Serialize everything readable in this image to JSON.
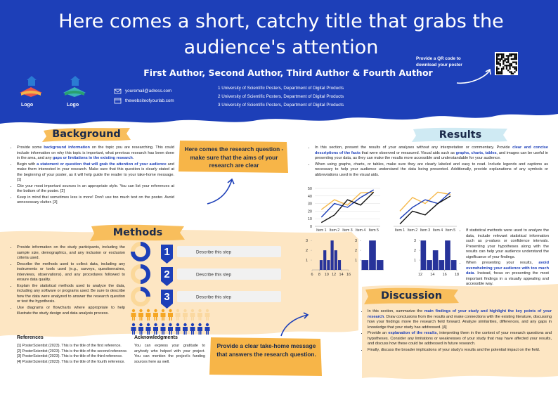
{
  "header": {
    "title": "Here comes a short, catchy title that grabs the audience's attention",
    "authors": "First Author, Second Author, Third Author & Fourth Author",
    "logos": [
      "Logo",
      "Logo"
    ],
    "email": "youremail@adress.com",
    "website": "thewebsiteofyourlab.com",
    "affiliations": [
      "1 University of Scientific Posters, Department of Digital Products",
      "2 University of Scientific Posters, Department of Digital Products",
      "3 University of Scientific Posters, Department of Digital Products"
    ],
    "qr_text": "Provide a QR code to download your poster"
  },
  "background": {
    "title": "Background",
    "bullets": [
      [
        "Provide some ",
        "background information",
        " on the topic you are researching. This could include information on why this topic is important, what previous research has been done in the area, and any ",
        "gaps or limitations in the existing research",
        "."
      ],
      [
        "Begin with ",
        "a statement or question that will grab the attention of your audience",
        " and make them interested in your research. Make sure that this question is clearly stated at the beginning of your poster, as it will help guide the reader to your take-home message. [1]"
      ],
      [
        "Cite your most important sources in an appropriate style. You can list your references at the bottom of the poster. [2]"
      ],
      [
        "Keep in mind that sometimes less is more! Don't use too much text on the poster. Avoid unnecessary clutter. [3]"
      ]
    ]
  },
  "question": "Here comes the research question - make sure that the aims of your research are clear",
  "methods": {
    "title": "Methods",
    "bullets": [
      [
        "Provide information on the study participants, including the sample size, demographics, and any inclusion or exclusion criteria used."
      ],
      [
        "Describe the methods used to collect data, including any instruments or tools used (e.g., surveys, questionnaires, interviews, observations), and any procedures followed to ensure data quality."
      ],
      [
        "Explain the statistical methods used to analyze the data, including any software or programs used. Be sure to describe how the data were analyzed to answer the research question or test the hypothesis."
      ],
      [
        "Use diagrams or flowcharts where appropriate to help illustrate the study design and data analysis process."
      ]
    ],
    "steps": [
      {
        "number": 1,
        "text": "Describe this step"
      },
      {
        "number": 2,
        "text": "Describe this step"
      },
      {
        "number": 3,
        "text": "Describe this step"
      }
    ]
  },
  "results": {
    "title": "Results",
    "bullets": [
      [
        "In this section, present the results of your analyses without any interpretation or commentary. Provide ",
        "clear and concise descriptions of the facts",
        " that were observed or measured. Visual aids such as ",
        "graphs, charts, tables",
        ", and images can be useful in presenting your data, as they can make the results more accessible and understandable for your audience."
      ],
      [
        "When using graphs, charts, or tables, make sure they are clearly labeled and easy to read. Include legends and captions as necessary to help your audience understand the data being presented. Additionally, provide explanations of any symbols or abbreviations used in the visual aids."
      ]
    ],
    "side_bullets": [
      [
        "If statistical methods were used to analyze the data, include relevant statistical information such as p-values or confidence intervals. Presenting your hypotheses along with the results can help your audience understand the significance of your findings."
      ],
      [
        "When presenting your results, ",
        "avoid overwhelming your audience with too much data",
        ". Instead, focus on presenting the most important findings in a visually appealing and accessible way."
      ]
    ],
    "line_charts": [
      {
        "type": "line",
        "categories": [
          "Item 1",
          "Item 2",
          "Item 3",
          "Item 4",
          "Item 5"
        ],
        "ylim": [
          0,
          50
        ],
        "yticks": [
          0,
          10,
          20,
          30,
          40,
          50
        ],
        "series": [
          {
            "color": "#f5b84a",
            "values": [
              22,
              35,
              28,
              44,
              45
            ]
          },
          {
            "color": "#1d3fb8",
            "values": [
              12,
              30,
              25,
              38,
              48
            ]
          },
          {
            "color": "#111111",
            "values": [
              5,
              15,
              35,
              28,
              45
            ]
          }
        ]
      },
      {
        "type": "line",
        "categories": [
          "Item 1",
          "Item 2",
          "Item 3",
          "Item 4",
          "Item 5"
        ],
        "ylim": [
          0,
          50
        ],
        "yticks": [],
        "series": [
          {
            "color": "#f5b84a",
            "values": [
              20,
              38,
              30,
              45,
              42
            ]
          },
          {
            "color": "#1d3fb8",
            "values": [
              10,
              25,
              35,
              30,
              45
            ]
          },
          {
            "color": "#111111",
            "values": [
              3,
              20,
              15,
              30,
              40
            ]
          }
        ]
      }
    ],
    "histograms": [
      {
        "type": "histogram",
        "bins": [
          8,
          9,
          10,
          11,
          12,
          13,
          14
        ],
        "counts": [
          1,
          2,
          1,
          3,
          2,
          1
        ],
        "xlim": [
          6,
          16
        ],
        "xticks": [
          6,
          8,
          10,
          12,
          14,
          16
        ],
        "ylim": [
          0,
          3.3
        ],
        "yticks": [
          1,
          2,
          3
        ],
        "color": "#27339a"
      },
      {
        "type": "histogram",
        "bins": [
          0,
          1,
          2,
          3
        ],
        "counts": [
          1,
          3,
          1
        ],
        "xlim": [
          0,
          3
        ],
        "xticks": [],
        "ylim": [
          0,
          3.3
        ],
        "yticks": [
          1,
          2,
          3
        ],
        "color": "#27339a"
      },
      {
        "type": "histogram",
        "bins": [
          12,
          13,
          14,
          15,
          16,
          17,
          18
        ],
        "counts": [
          3,
          1,
          2,
          1,
          3,
          1
        ],
        "xlim": [
          12,
          18
        ],
        "xticks": [
          12,
          14,
          16,
          18
        ],
        "ylim": [
          0,
          3.3
        ],
        "yticks": [
          1,
          2,
          3
        ],
        "color": "#27339a"
      }
    ]
  },
  "discussion": {
    "title": "Discussion",
    "bullets": [
      [
        "In this section, summarize the ",
        "main findings of your study and highlight the key points of your research",
        ". Draw conclusions from the results and make connections with the existing literature, discussing how your findings move the research field forward. Analyze similarities, differences, and any gaps in knowledge that your study has addressed. [4]"
      ],
      [
        "Provide an ",
        "explanation of the results",
        ", interpreting them in the context of your research questions and hypotheses. Consider any limitations or weaknesses of your study that may have affected your results, and discuss how these could be addressed in future research."
      ],
      [
        "Finally, discuss the broader implications of your study's results and the potential impact on the field."
      ]
    ]
  },
  "take_home": "Provide a clear take-home message that answers the research question.",
  "references": {
    "title": "References",
    "items": [
      "[1] PosterScientist (2023). This is the title of the first reference.",
      "[2] PosterScientist (2023). This is the title of the second reference.",
      "[3] PosterScientist (2023). This is the title of the third reference.",
      "[4] PosterScientist (2023). This is the title of the fourth reference."
    ]
  },
  "acknowledgments": {
    "title": "Acknowledgments",
    "text": "You can express your gratitude to anybody who helped with your project. You can mention the project's funding sources here as well."
  }
}
